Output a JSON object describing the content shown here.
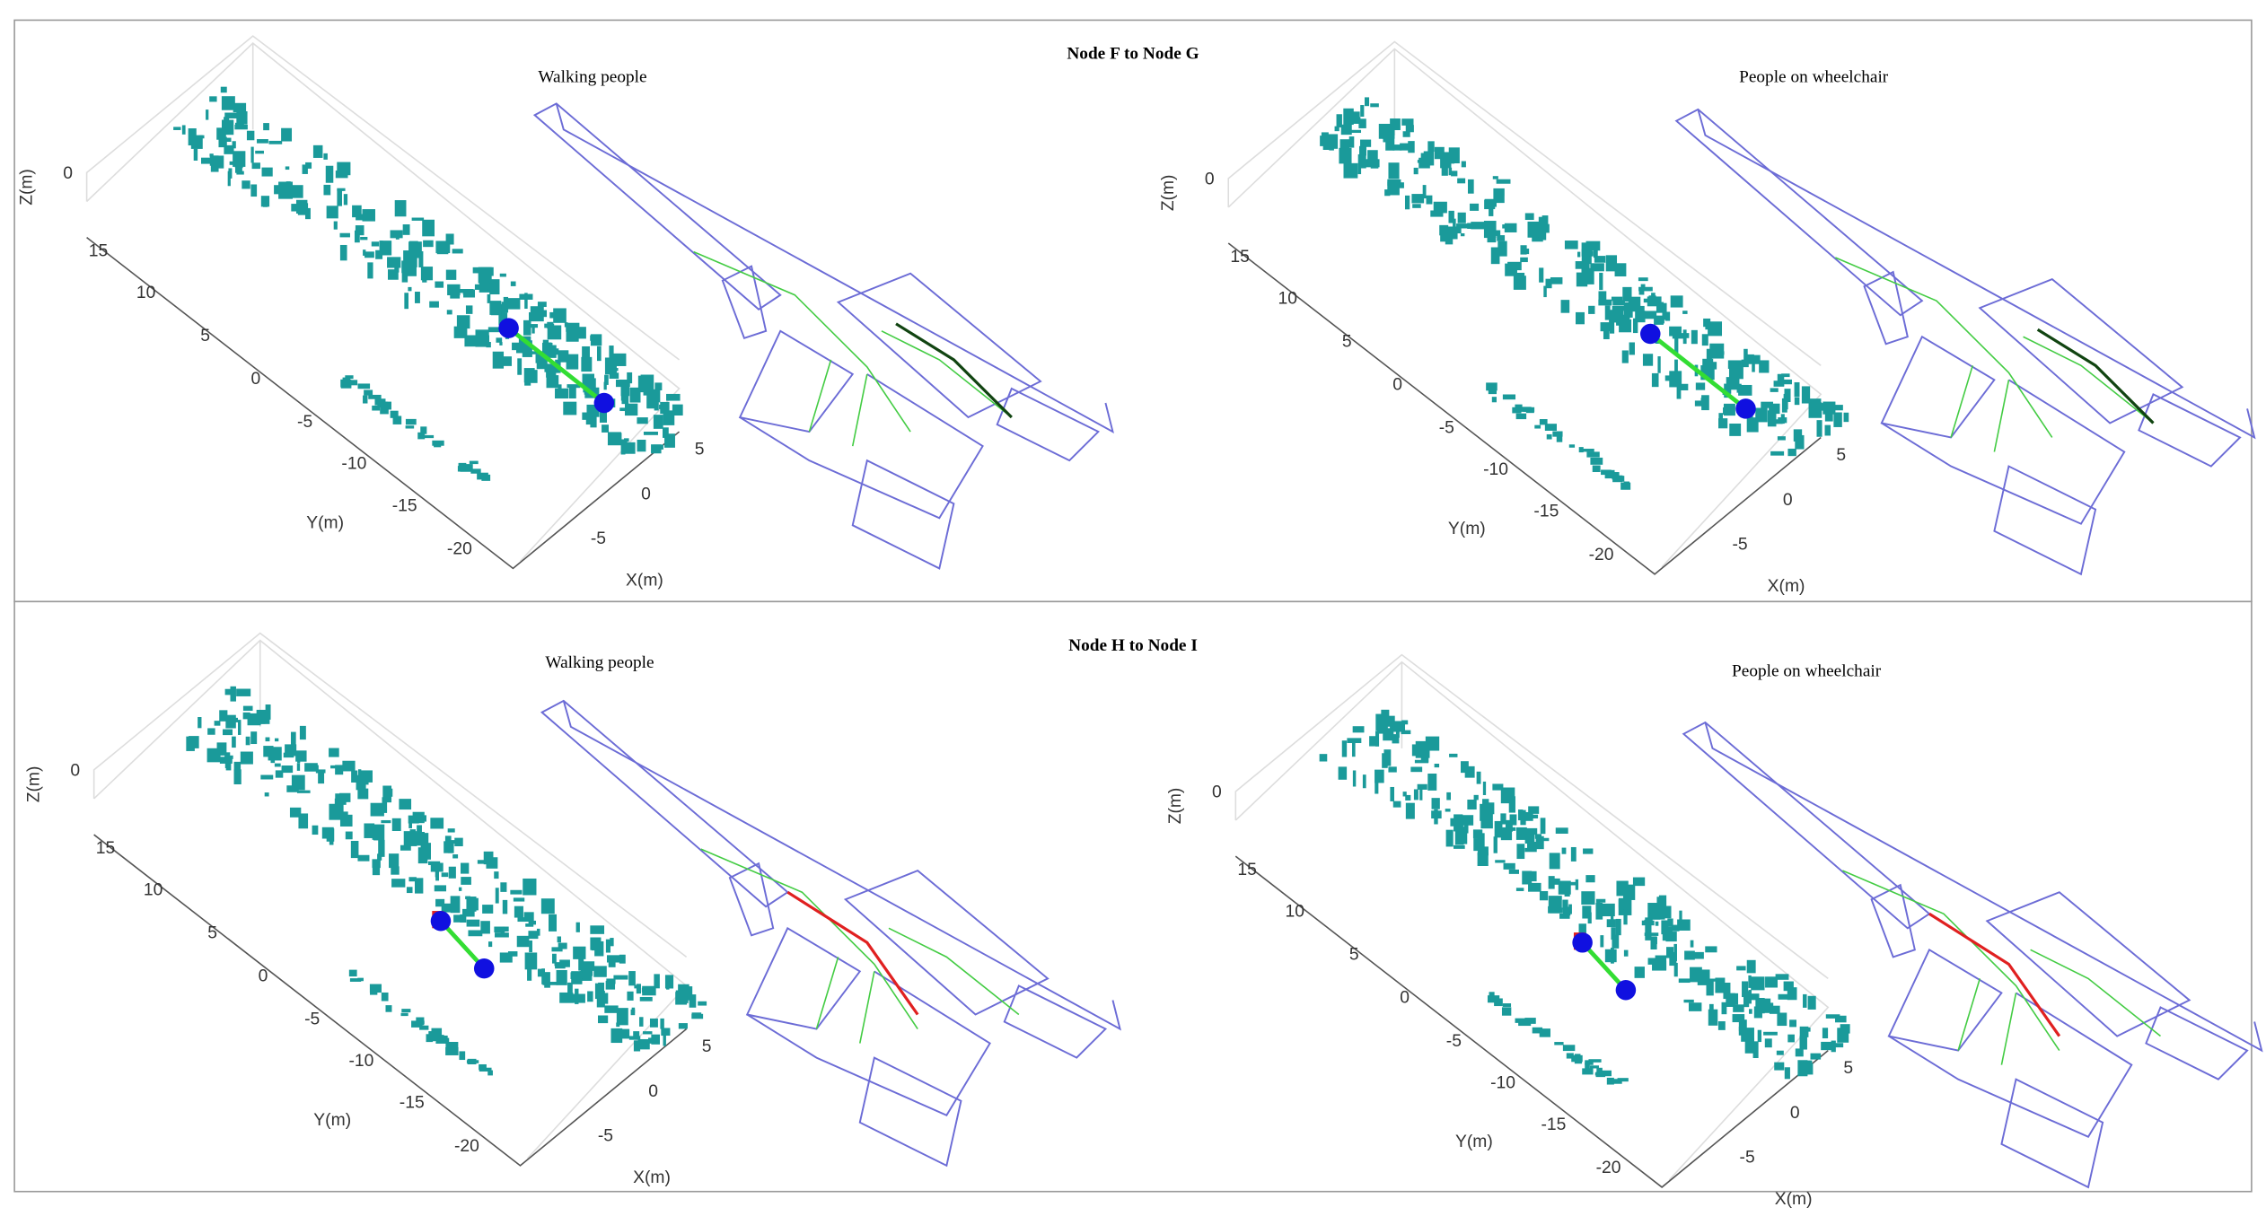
{
  "panels": [
    {
      "title": "Node F to Node G",
      "views": [
        {
          "subtitle": "Walking people",
          "axes": {
            "z_label": "Z(m)",
            "z_ticks": [
              "0"
            ],
            "y_label": "Y(m)",
            "y_ticks": [
              "15",
              "10",
              "5",
              "0",
              "-5",
              "-10",
              "-15",
              "-20"
            ],
            "x_label": "X(m)",
            "x_ticks": [
              "5",
              "0",
              "-5"
            ]
          }
        },
        {
          "subtitle": "People on wheelchair",
          "axes": {
            "z_label": "Z(m)",
            "z_ticks": [
              "0"
            ],
            "y_label": "Y(m)",
            "y_ticks": [
              "15",
              "10",
              "5",
              "0",
              "-5",
              "-10",
              "-15",
              "-20"
            ],
            "x_label": "X(m)",
            "x_ticks": [
              "5",
              "0",
              "-5"
            ]
          }
        }
      ]
    },
    {
      "title": "Node H to Node I",
      "views": [
        {
          "subtitle": "Walking people",
          "axes": {
            "z_label": "Z(m)",
            "z_ticks": [
              "0"
            ],
            "y_label": "Y(m)",
            "y_ticks": [
              "15",
              "10",
              "5",
              "0",
              "-5",
              "-10",
              "-15",
              "-20"
            ],
            "x_label": "X(m)",
            "x_ticks": [
              "5",
              "0",
              "-5"
            ]
          }
        },
        {
          "subtitle": "People on wheelchair",
          "axes": {
            "z_label": "Z(m)",
            "z_ticks": [
              "0"
            ],
            "y_label": "Y(m)",
            "y_ticks": [
              "15",
              "10",
              "5",
              "0",
              "-5",
              "-10",
              "-15",
              "-20"
            ],
            "x_label": "X(m)",
            "x_ticks": [
              "5",
              "0",
              "-5"
            ]
          }
        }
      ]
    }
  ]
}
